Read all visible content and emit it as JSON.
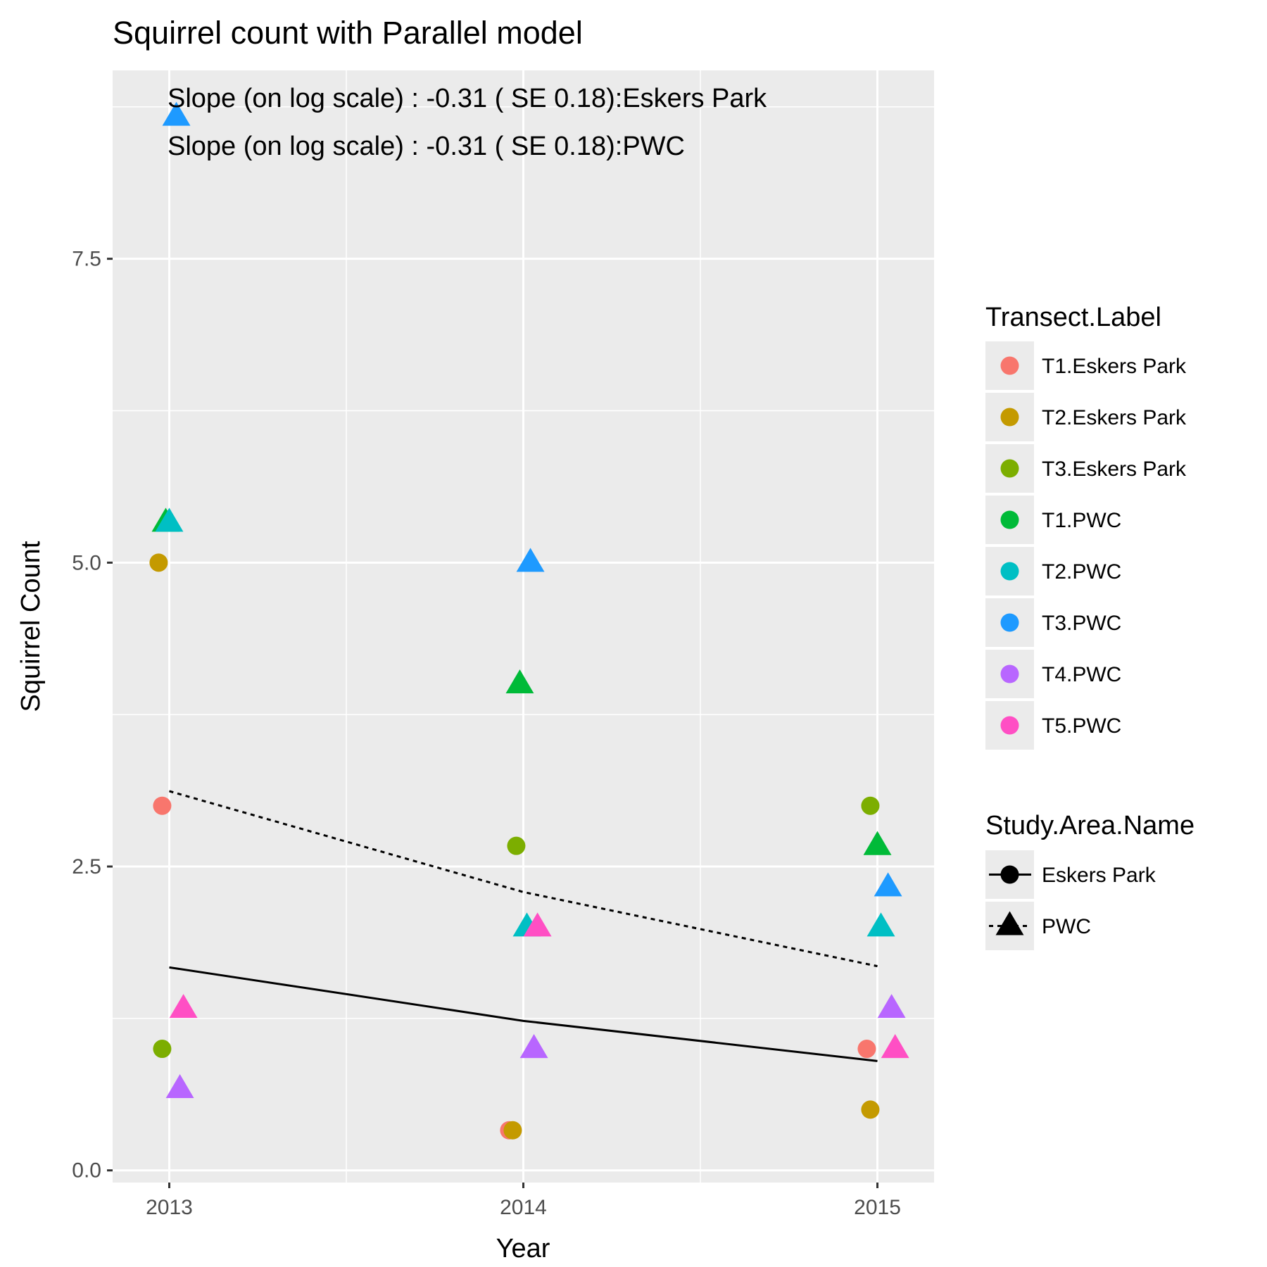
{
  "chart_data": {
    "type": "scatter",
    "title": "Squirrel count with  Parallel model",
    "xlabel": "Year",
    "ylabel": "Squirrel Count",
    "x_ticks": [
      "2013",
      "2014",
      "2015"
    ],
    "y_ticks": [
      "0.0",
      "2.5",
      "5.0",
      "7.5"
    ],
    "xlim": [
      2012.84,
      2015.16
    ],
    "ylim": [
      -0.1,
      9.05
    ],
    "grid": true,
    "annotations": [
      "Slope (on log scale) : -0.31 ( SE 0.18):Eskers Park",
      "Slope (on log scale) : -0.31 ( SE 0.18):PWC"
    ],
    "legends": [
      {
        "title": "Transect.Label",
        "entries": [
          {
            "label": "T1.Eskers Park",
            "color": "#F8766D"
          },
          {
            "label": "T2.Eskers Park",
            "color": "#C49A00"
          },
          {
            "label": "T3.Eskers Park",
            "color": "#7CAE00"
          },
          {
            "label": "T1.PWC",
            "color": "#00BA38"
          },
          {
            "label": "T2.PWC",
            "color": "#00BFC4"
          },
          {
            "label": "T3.PWC",
            "color": "#1E9AFF"
          },
          {
            "label": "T4.PWC",
            "color": "#B866FF"
          },
          {
            "label": "T5.PWC",
            "color": "#FF4FC4"
          }
        ]
      },
      {
        "title": "Study.Area.Name",
        "entries": [
          {
            "label": "Eskers Park",
            "shape": "circle",
            "linetype": "solid"
          },
          {
            "label": "PWC",
            "shape": "triangle",
            "linetype": "dotted"
          }
        ]
      }
    ],
    "series": [
      {
        "name": "T1.Eskers Park",
        "shape": "circle",
        "color": "#F8766D",
        "points": [
          {
            "x": 2012.98,
            "y": 3.0
          },
          {
            "x": 2013.96,
            "y": 0.33
          },
          {
            "x": 2014.97,
            "y": 1.0
          }
        ]
      },
      {
        "name": "T2.Eskers Park",
        "shape": "circle",
        "color": "#C49A00",
        "points": [
          {
            "x": 2012.97,
            "y": 5.0
          },
          {
            "x": 2013.97,
            "y": 0.33
          },
          {
            "x": 2014.98,
            "y": 0.5
          }
        ]
      },
      {
        "name": "T3.Eskers Park",
        "shape": "circle",
        "color": "#7CAE00",
        "points": [
          {
            "x": 2012.98,
            "y": 1.0
          },
          {
            "x": 2013.98,
            "y": 2.67
          },
          {
            "x": 2014.98,
            "y": 3.0
          }
        ]
      },
      {
        "name": "T1.PWC",
        "shape": "triangle",
        "color": "#00BA38",
        "points": [
          {
            "x": 2012.99,
            "y": 5.33
          },
          {
            "x": 2013.99,
            "y": 4.0
          },
          {
            "x": 2015.0,
            "y": 2.67
          }
        ]
      },
      {
        "name": "T2.PWC",
        "shape": "triangle",
        "color": "#00BFC4",
        "points": [
          {
            "x": 2013.0,
            "y": 5.33
          },
          {
            "x": 2014.01,
            "y": 2.0
          },
          {
            "x": 2015.01,
            "y": 2.0
          }
        ]
      },
      {
        "name": "T3.PWC",
        "shape": "triangle",
        "color": "#1E9AFF",
        "points": [
          {
            "x": 2013.02,
            "y": 8.67
          },
          {
            "x": 2014.02,
            "y": 5.0
          },
          {
            "x": 2015.03,
            "y": 2.33
          }
        ]
      },
      {
        "name": "T4.PWC",
        "shape": "triangle",
        "color": "#B866FF",
        "points": [
          {
            "x": 2013.03,
            "y": 0.67
          },
          {
            "x": 2014.03,
            "y": 1.0
          },
          {
            "x": 2015.04,
            "y": 1.33
          }
        ]
      },
      {
        "name": "T5.PWC",
        "shape": "triangle",
        "color": "#FF4FC4",
        "points": [
          {
            "x": 2013.04,
            "y": 1.33
          },
          {
            "x": 2014.04,
            "y": 2.0
          },
          {
            "x": 2015.05,
            "y": 1.0
          }
        ]
      }
    ],
    "fit_lines": [
      {
        "name": "Eskers Park",
        "linetype": "solid",
        "x": [
          2013,
          2014,
          2015
        ],
        "y": [
          1.67,
          1.23,
          0.9
        ]
      },
      {
        "name": "PWC",
        "linetype": "dotted",
        "x": [
          2013,
          2014,
          2015
        ],
        "y": [
          3.12,
          2.29,
          1.68
        ]
      }
    ]
  }
}
